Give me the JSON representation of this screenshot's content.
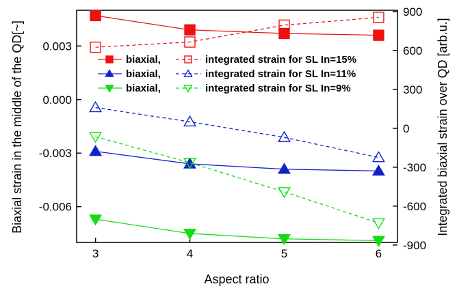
{
  "chart_data": {
    "type": "line",
    "xlabel": "Aspect ratio",
    "ylabel_left": "Biaxial strain in the middle of the QD[~]",
    "ylabel_right": "Integrated biaxial strain over QD [arb.u.]",
    "x": [
      3,
      4,
      5,
      6
    ],
    "x_ticks": [
      "3",
      "4",
      "5",
      "6"
    ],
    "xlim": [
      2.8,
      6.2
    ],
    "ylim_left": [
      -0.008,
      0.005
    ],
    "ylim_right": [
      -880,
      910
    ],
    "y_ticks_left": [
      "-0.006",
      "-0.003",
      "0.000",
      "0.003"
    ],
    "y_tick_values_left": [
      -0.006,
      -0.003,
      0.0,
      0.003
    ],
    "y_ticks_right": [
      "-900",
      "-600",
      "-300",
      "0",
      "300",
      "600",
      "900"
    ],
    "y_tick_values_right": [
      -900,
      -600,
      -300,
      0,
      300,
      600,
      900
    ],
    "series": [
      {
        "name": "biaxial,",
        "axis": "left",
        "color": "#ee1111",
        "marker": "square",
        "filled": true,
        "dashed": false,
        "values": [
          0.0047,
          0.0039,
          0.0037,
          0.0036
        ]
      },
      {
        "name": "integrated strain for SL In=15%",
        "axis": "right",
        "color": "#ee1111",
        "marker": "square",
        "filled": false,
        "dashed": true,
        "values": [
          625,
          665,
          795,
          855
        ]
      },
      {
        "name": "biaxial,",
        "axis": "left",
        "color": "#1122cc",
        "marker": "triangle-up",
        "filled": true,
        "dashed": false,
        "values": [
          -0.0029,
          -0.0036,
          -0.0039,
          -0.004
        ]
      },
      {
        "name": "integrated strain for SL In=11%",
        "axis": "right",
        "color": "#1122cc",
        "marker": "triangle-up",
        "filled": false,
        "dashed": true,
        "values": [
          160,
          50,
          -70,
          -225
        ]
      },
      {
        "name": "biaxial,",
        "axis": "left",
        "color": "#11dd11",
        "marker": "triangle-down",
        "filled": true,
        "dashed": false,
        "values": [
          -0.0067,
          -0.0075,
          -0.0078,
          -0.0079
        ]
      },
      {
        "name": "integrated strain for SL In=9%",
        "axis": "right",
        "color": "#11dd11",
        "marker": "triangle-down",
        "filled": false,
        "dashed": true,
        "values": [
          -65,
          -265,
          -490,
          -730
        ]
      }
    ],
    "legend": {
      "placement": "top-right",
      "rows": [
        {
          "solid_label": "biaxial,",
          "dashed_label": "integrated strain for SL In=15%",
          "color": "#ee1111",
          "marker": "square"
        },
        {
          "solid_label": "biaxial,",
          "dashed_label": "integrated strain for SL In=11%",
          "color": "#1122cc",
          "marker": "triangle-up"
        },
        {
          "solid_label": "biaxial,",
          "dashed_label": "integrated strain for SL In=9%",
          "color": "#11dd11",
          "marker": "triangle-down"
        }
      ]
    },
    "grid": false
  }
}
